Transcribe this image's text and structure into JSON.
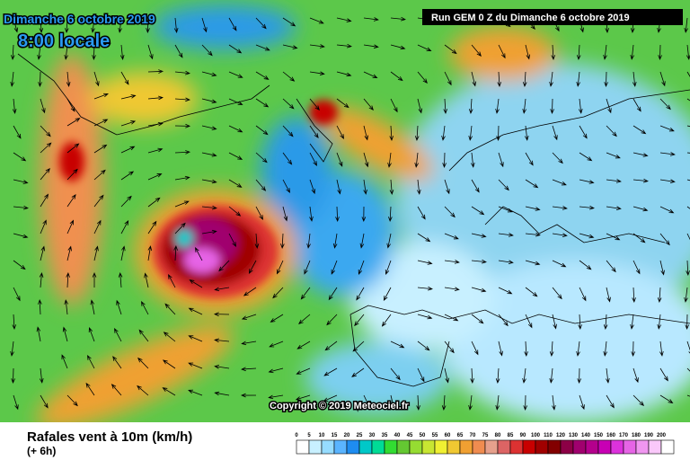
{
  "header": {
    "date": "Dimanche 6 octobre 2019",
    "time": "8:00 locale",
    "run": "Run GEM 0 Z du Dimanche 6 octobre 2019"
  },
  "map": {
    "copyright": "Copyright © 2019 Meteociel.fr"
  },
  "footer": {
    "title": "Rafales vent à 10m (km/h)",
    "lead": "(+ 6h)"
  },
  "legend": [
    {
      "label": "0",
      "color": "#ffffff"
    },
    {
      "label": "5",
      "color": "#c8f0ff"
    },
    {
      "label": "10",
      "color": "#96dcff"
    },
    {
      "label": "15",
      "color": "#5ab4ff"
    },
    {
      "label": "20",
      "color": "#1e8cf0"
    },
    {
      "label": "25",
      "color": "#00c8c8"
    },
    {
      "label": "30",
      "color": "#00dc96"
    },
    {
      "label": "35",
      "color": "#32dc32"
    },
    {
      "label": "40",
      "color": "#64c832"
    },
    {
      "label": "45",
      "color": "#96dc32"
    },
    {
      "label": "50",
      "color": "#c8e632"
    },
    {
      "label": "55",
      "color": "#f0f032"
    },
    {
      "label": "60",
      "color": "#f0c832"
    },
    {
      "label": "65",
      "color": "#f0a032"
    },
    {
      "label": "70",
      "color": "#f08c50"
    },
    {
      "label": "75",
      "color": "#e6a08c"
    },
    {
      "label": "80",
      "color": "#dc6464"
    },
    {
      "label": "85",
      "color": "#dc3232"
    },
    {
      "label": "90",
      "color": "#c80000"
    },
    {
      "label": "100",
      "color": "#a00000"
    },
    {
      "label": "110",
      "color": "#820000"
    },
    {
      "label": "120",
      "color": "#8c0046"
    },
    {
      "label": "130",
      "color": "#a0006e"
    },
    {
      "label": "140",
      "color": "#b4008c"
    },
    {
      "label": "150",
      "color": "#c800b4"
    },
    {
      "label": "160",
      "color": "#dc32dc"
    },
    {
      "label": "170",
      "color": "#e664e6"
    },
    {
      "label": "180",
      "color": "#f096f0"
    },
    {
      "label": "190",
      "color": "#fac8fa"
    },
    {
      "label": "200",
      "color": "#ffffff"
    }
  ]
}
